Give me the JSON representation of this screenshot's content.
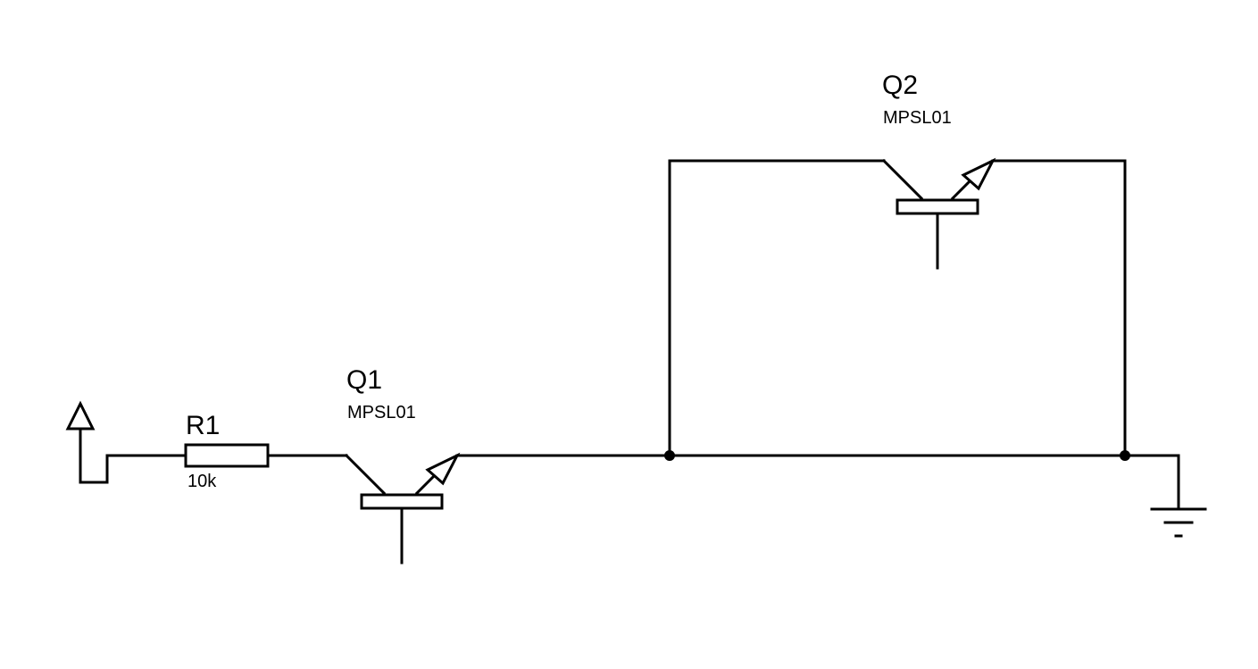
{
  "components": {
    "r1": {
      "refdes": "R1",
      "value": "10k"
    },
    "q1": {
      "refdes": "Q1",
      "value": "MPSL01"
    },
    "q2": {
      "refdes": "Q2",
      "value": "MPSL01"
    }
  },
  "colors": {
    "wire": "#000000",
    "background": "#ffffff"
  }
}
